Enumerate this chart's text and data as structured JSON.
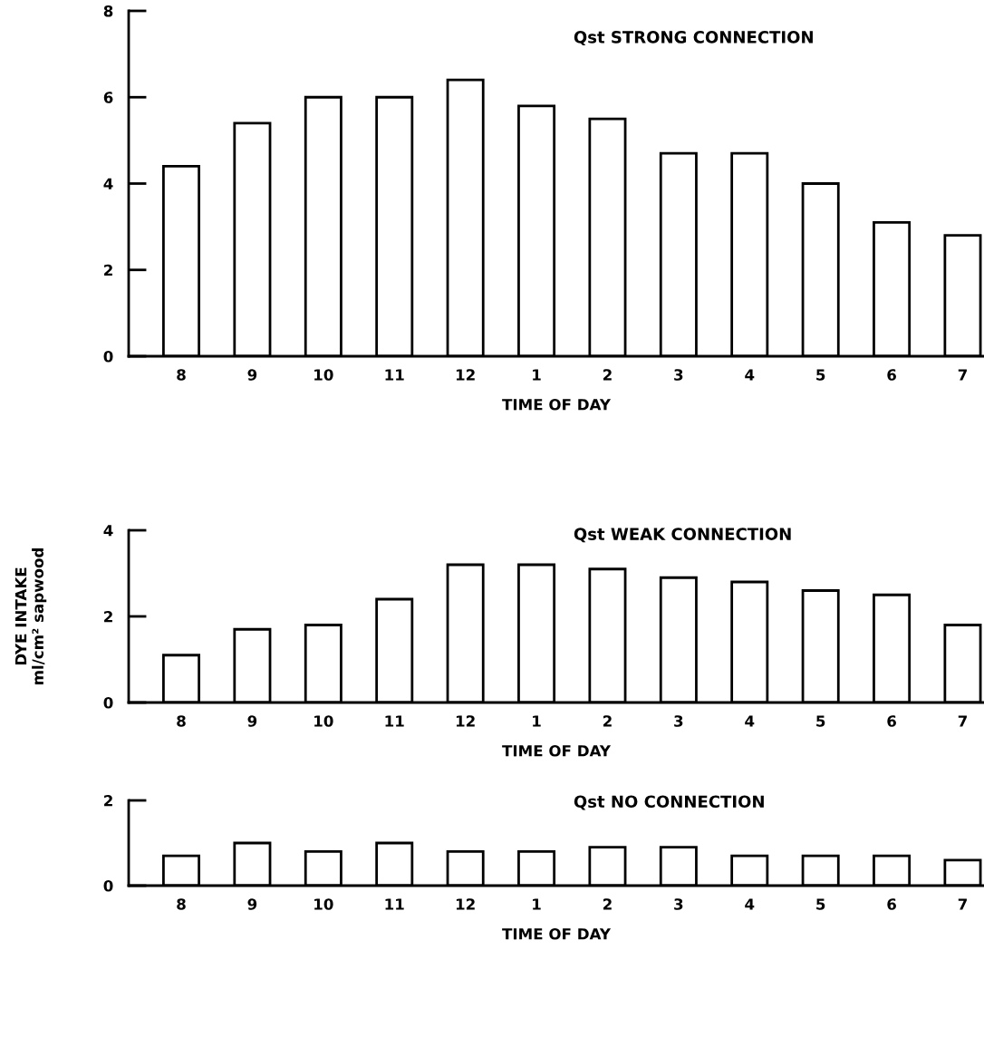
{
  "chart_data": [
    {
      "type": "bar",
      "title": "Qst STRONG CONNECTION",
      "xlabel": "TIME OF DAY",
      "categories": [
        "8",
        "9",
        "10",
        "11",
        "12",
        "1",
        "2",
        "3",
        "4",
        "5",
        "6",
        "7"
      ],
      "values": [
        4.4,
        5.4,
        6.0,
        6.0,
        6.4,
        5.8,
        5.5,
        4.7,
        4.7,
        4.0,
        3.1,
        2.8
      ],
      "color": "#ffffff",
      "ylim": [
        0,
        8
      ],
      "yticks": [
        0,
        2,
        4,
        6,
        8
      ],
      "grid": false
    },
    {
      "type": "bar",
      "title": "Qst WEAK CONNECTION",
      "xlabel": "TIME OF DAY",
      "ylabel": "DYE INTAKE\nml/cm² sapwood",
      "categories": [
        "8",
        "9",
        "10",
        "11",
        "12",
        "1",
        "2",
        "3",
        "4",
        "5",
        "6",
        "7"
      ],
      "values": [
        1.1,
        1.7,
        1.8,
        2.4,
        3.2,
        3.2,
        3.1,
        2.9,
        2.8,
        2.6,
        2.5,
        1.8
      ],
      "color": "#ffffff",
      "ylim": [
        0,
        4
      ],
      "yticks": [
        0,
        2,
        4
      ],
      "grid": false
    },
    {
      "type": "bar",
      "title": "Qst NO CONNECTION",
      "xlabel": "TIME OF DAY",
      "categories": [
        "8",
        "9",
        "10",
        "11",
        "12",
        "1",
        "2",
        "3",
        "4",
        "5",
        "6",
        "7"
      ],
      "values": [
        0.7,
        1.0,
        0.8,
        1.0,
        0.8,
        0.8,
        0.9,
        0.9,
        0.7,
        0.7,
        0.7,
        0.6
      ],
      "color": "#ffffff",
      "ylim": [
        0,
        2
      ],
      "yticks": [
        0,
        2
      ],
      "grid": false
    }
  ]
}
